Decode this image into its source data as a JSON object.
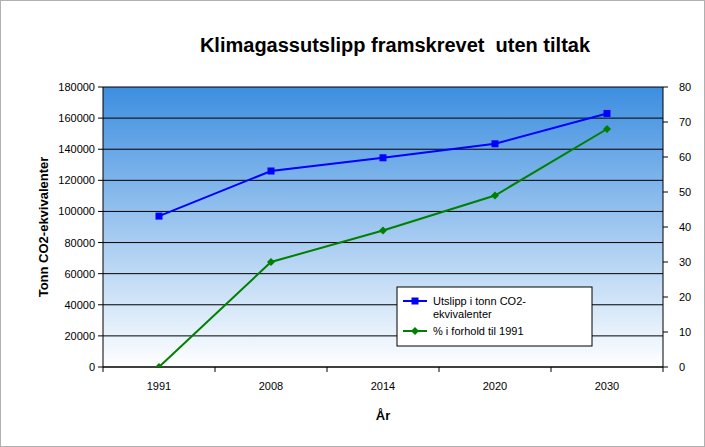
{
  "chart_data": {
    "type": "line",
    "title": "Klimagassutslipp framskrevet  uten tiltak",
    "x_label": "År",
    "y_label": "Tonn CO2-ekvivalenter",
    "categories": [
      "1991",
      "2008",
      "2014",
      "2020",
      "2030"
    ],
    "series": [
      {
        "name": "Utslipp i tonn CO2-ekvivalenter",
        "color": "#0000ff",
        "marker": "square",
        "values": [
          97000,
          126000,
          134500,
          143500,
          163000
        ]
      },
      {
        "name": "% i forhold til 1991",
        "color": "#008000",
        "marker": "diamond",
        "axis": "y2",
        "values": [
          0,
          30,
          39,
          49,
          68
        ]
      }
    ],
    "ylim": [
      0,
      180000
    ],
    "yticks": [
      0,
      20000,
      40000,
      60000,
      80000,
      100000,
      120000,
      140000,
      160000,
      180000
    ],
    "y2lim": [
      0,
      80
    ],
    "y2ticks": [
      0,
      10,
      20,
      30,
      40,
      50,
      60,
      70,
      80
    ],
    "grid": true,
    "legend": "bottom-right"
  }
}
